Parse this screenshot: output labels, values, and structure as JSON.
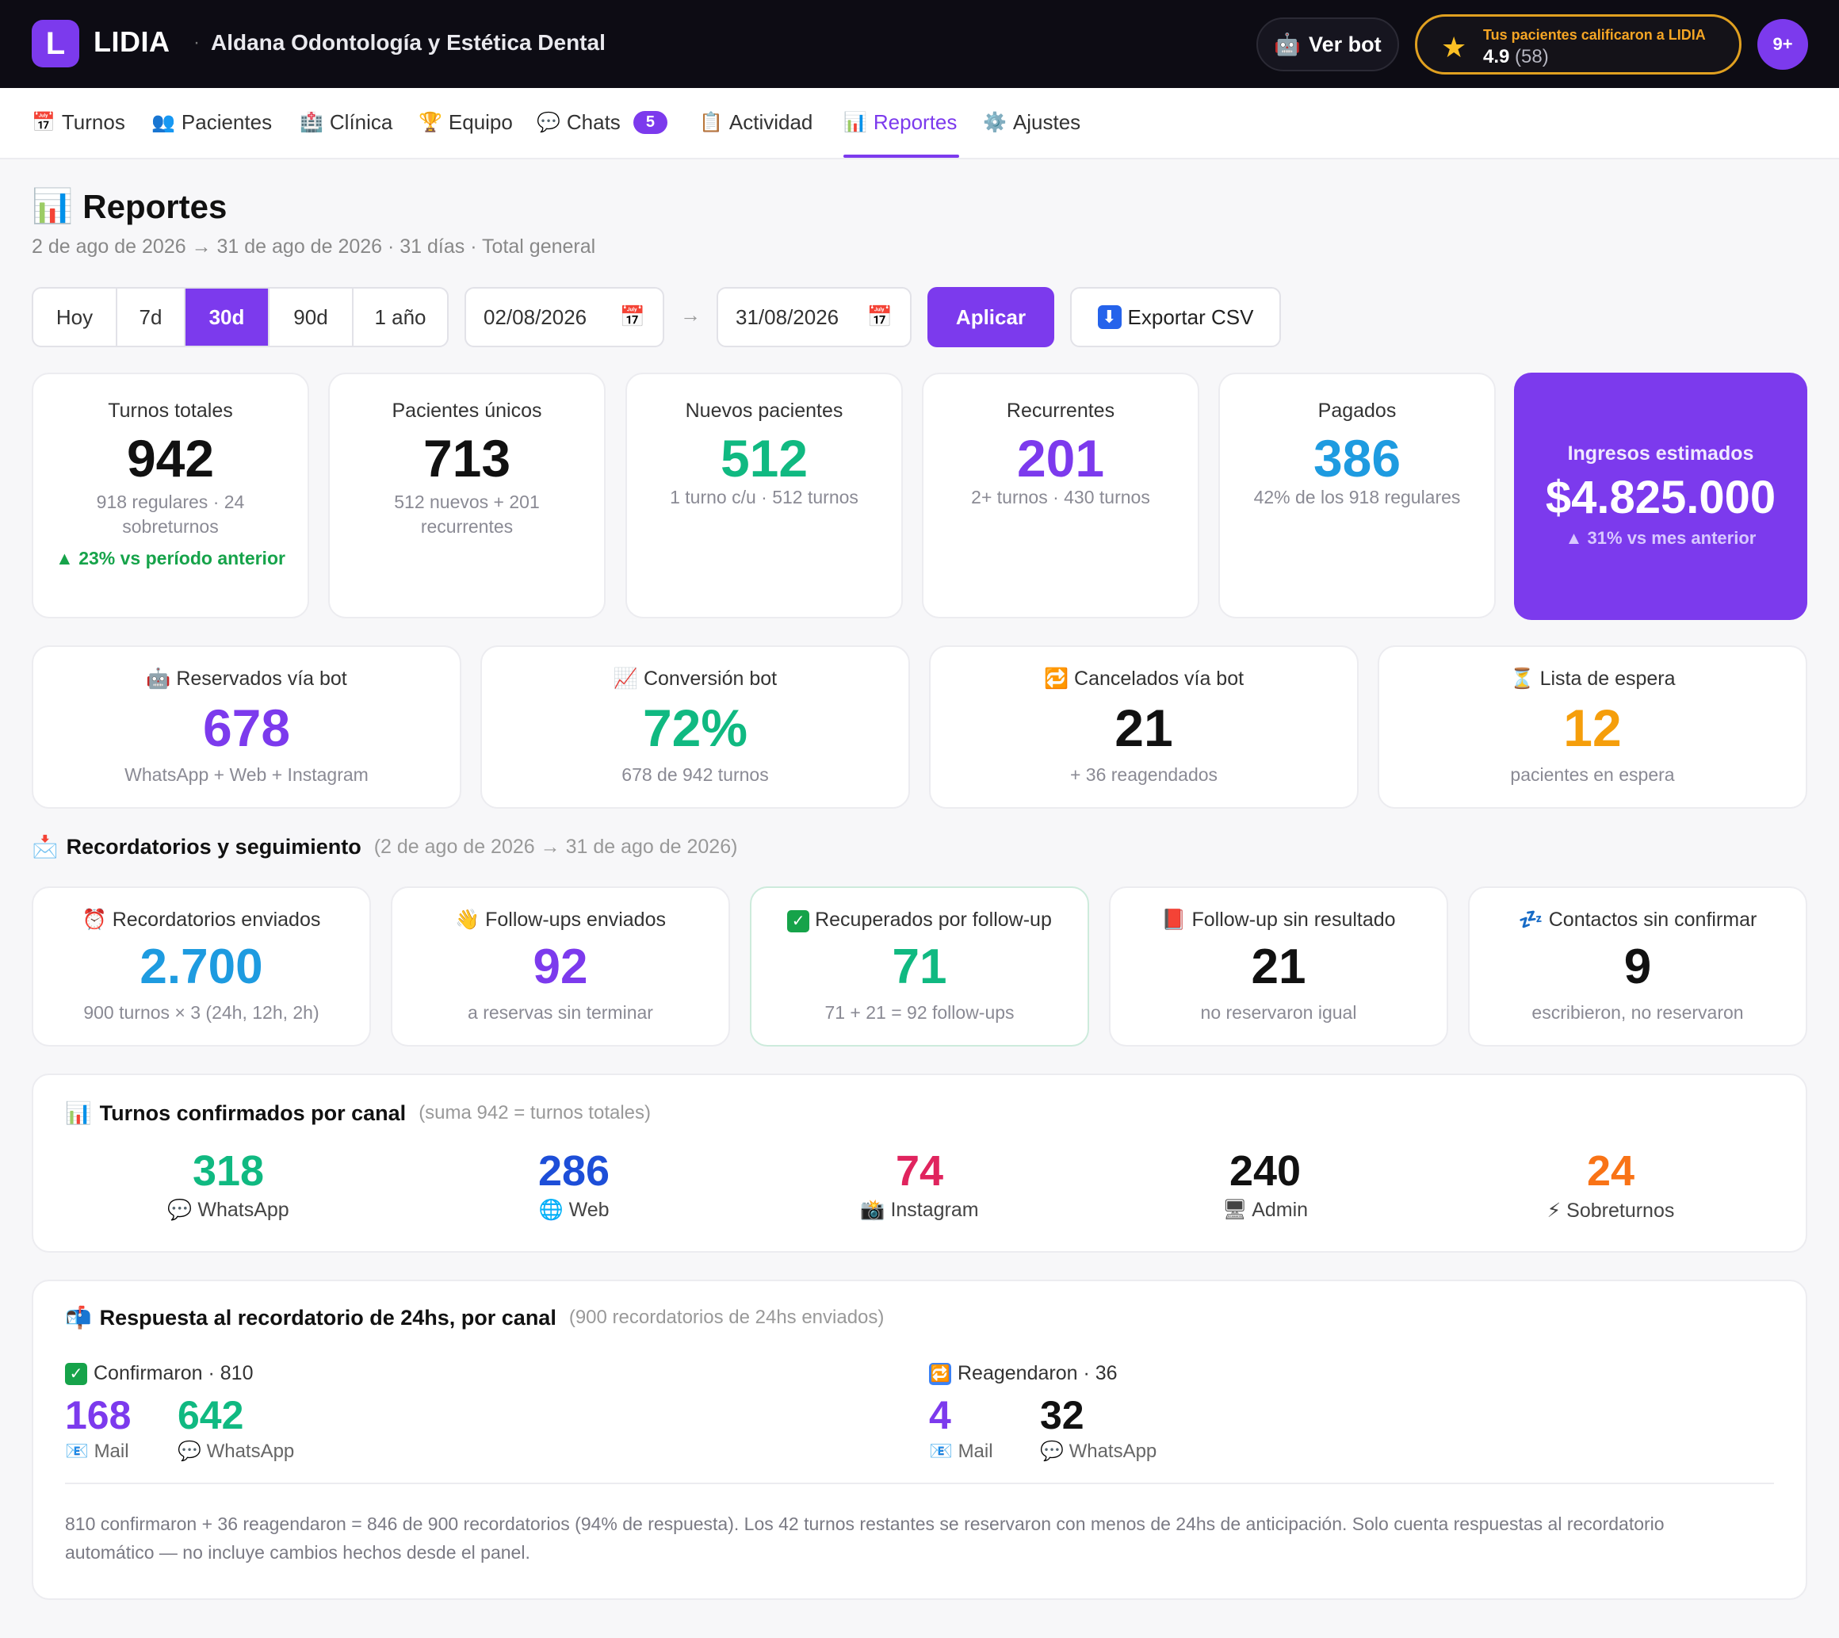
{
  "topbar": {
    "logo_letter": "L",
    "brand": "LIDIA",
    "separator": "·",
    "clinic": "Aldana Odontología y Estética Dental",
    "ver_bot": "Ver bot",
    "rating_caption": "Tus pacientes calificaron a LIDIA",
    "rating_value": "4.9",
    "rating_count": "(58)",
    "notifications": "9+"
  },
  "nav": {
    "items": [
      {
        "icon": "📅",
        "label": "Turnos"
      },
      {
        "icon": "👥",
        "label": "Pacientes"
      },
      {
        "icon": "🏥",
        "label": "Clínica"
      },
      {
        "icon": "🏆",
        "label": "Equipo"
      },
      {
        "icon": "💬",
        "label": "Chats",
        "badge": "5"
      },
      {
        "icon": "📋",
        "label": "Actividad"
      },
      {
        "icon": "📊",
        "label": "Reportes"
      },
      {
        "icon": "⚙️",
        "label": "Ajustes"
      }
    ]
  },
  "header": {
    "icon": "📊",
    "title": "Reportes",
    "subtitle": "2 de ago de 2026 → 31 de ago de 2026 · 31 días · Total general"
  },
  "controls": {
    "ranges": [
      "Hoy",
      "7d",
      "30d",
      "90d",
      "1 año"
    ],
    "active_range": "30d",
    "date_from": "02/08/2026",
    "arrow": "→",
    "date_to": "31/08/2026",
    "apply": "Aplicar",
    "export": "Exportar CSV"
  },
  "kpis": {
    "turnos_totales": {
      "label": "Turnos totales",
      "value": "942",
      "sub": "918 regulares · 24 sobreturnos",
      "trend": "▲ 23% vs período anterior"
    },
    "pacientes_unicos": {
      "label": "Pacientes únicos",
      "value": "713",
      "sub": "512 nuevos + 201 recurrentes"
    },
    "nuevos_pacientes": {
      "label": "Nuevos pacientes",
      "value": "512",
      "sub": "1 turno c/u · 512 turnos"
    },
    "recurrentes": {
      "label": "Recurrentes",
      "value": "201",
      "sub": "2+ turnos · 430 turnos"
    },
    "pagados": {
      "label": "Pagados",
      "value": "386",
      "sub": "42% de los 918 regulares"
    },
    "ingresos": {
      "label": "Ingresos estimados",
      "value": "$4.825.000",
      "trend": "▲ 31% vs mes anterior"
    }
  },
  "bot": {
    "reservados": {
      "icon": "🤖",
      "label": "Reservados vía bot",
      "value": "678",
      "sub": "WhatsApp + Web + Instagram"
    },
    "conversion": {
      "icon": "📈",
      "label": "Conversión bot",
      "value": "72%",
      "sub": "678 de 942 turnos"
    },
    "cancelados": {
      "icon": "🔁",
      "label": "Cancelados vía bot",
      "value": "21",
      "sub": "+ 36 reagendados"
    },
    "espera": {
      "icon": "⏳",
      "label": "Lista de espera",
      "value": "12",
      "sub": "pacientes en espera"
    }
  },
  "reminders": {
    "icon": "📩",
    "title": "Recordatorios y seguimiento",
    "range": "(2 de ago de 2026 → 31 de ago de 2026)",
    "cards": {
      "enviados": {
        "icon": "⏰",
        "label": "Recordatorios enviados",
        "value": "2.700",
        "sub": "900 turnos × 3 (24h, 12h, 2h)"
      },
      "followups": {
        "icon": "👋",
        "label": "Follow-ups enviados",
        "value": "92",
        "sub": "a reservas sin terminar"
      },
      "recuperados": {
        "icon": "✓",
        "label": "Recuperados por follow-up",
        "value": "71",
        "sub": "71 + 21 = 92 follow-ups"
      },
      "sin_resultado": {
        "icon": "📕",
        "label": "Follow-up sin resultado",
        "value": "21",
        "sub": "no reservaron igual"
      },
      "sin_confirmar": {
        "icon": "💤",
        "label": "Contactos sin confirmar",
        "value": "9",
        "sub": "escribieron, no reservaron"
      }
    }
  },
  "canales": {
    "icon": "📊",
    "title": "Turnos confirmados por canal",
    "note": "(suma 942 = turnos totales)",
    "items": [
      {
        "value": "318",
        "icon": "💬",
        "label": "WhatsApp"
      },
      {
        "value": "286",
        "icon": "🌐",
        "label": "Web"
      },
      {
        "value": "74",
        "icon": "📸",
        "label": "Instagram"
      },
      {
        "value": "240",
        "icon": "🖥",
        "label": "Admin"
      },
      {
        "value": "24",
        "icon": "⚡",
        "label": "Sobreturnos"
      }
    ]
  },
  "respuesta": {
    "icon": "📬",
    "title": "Respuesta al recordatorio de 24hs, por canal",
    "note": "(900 recordatorios de 24hs enviados)",
    "confirmaron": {
      "icon": "✓",
      "label": "Confirmaron · 810",
      "mail": {
        "value": "168",
        "icon": "📧",
        "label": "Mail"
      },
      "whatsapp": {
        "value": "642",
        "icon": "💬",
        "label": "WhatsApp"
      }
    },
    "reagendaron": {
      "icon": "🔁",
      "label": "Reagendaron · 36",
      "mail": {
        "value": "4",
        "icon": "📧",
        "label": "Mail"
      },
      "whatsapp": {
        "value": "32",
        "icon": "💬",
        "label": "WhatsApp"
      }
    },
    "footnote": "810 confirmaron + 36 reagendaron = 846 de 900 recordatorios (94% de respuesta). Los 42 turnos restantes se reservaron con menos de 24hs de anticipación. Solo cuenta respuestas al recordatorio automático — no incluye cambios hechos desde el panel."
  },
  "colors": {
    "accent": "#7c3aed",
    "green": "#10b981",
    "blue": "#1e9be0",
    "orange": "#f59e0b",
    "pink": "#e0245e",
    "topbar": "#0d0c14"
  }
}
